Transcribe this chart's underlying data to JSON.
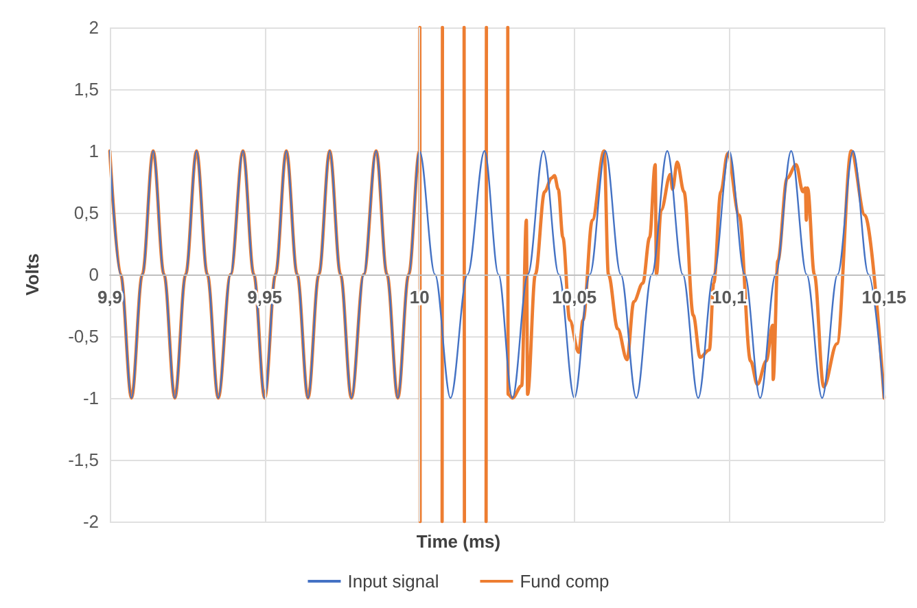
{
  "chart_data": {
    "type": "line",
    "xlabel": "Time (ms)",
    "ylabel": "Volts",
    "xlim": [
      9.9,
      10.15
    ],
    "xticks": [
      {
        "value": 9.9,
        "label": "9,9"
      },
      {
        "value": 9.95,
        "label": "9,95"
      },
      10,
      {
        "value": 10.05,
        "label": "10,05"
      },
      {
        "value": 10.1,
        "label": "10,1"
      },
      {
        "value": 10.15,
        "label": "10,15"
      }
    ],
    "ylim": [
      -2,
      2
    ],
    "yticks": [
      -2,
      {
        "value": -1.5,
        "label": "-1,5"
      },
      -1,
      {
        "value": -0.5,
        "label": "-0,5"
      },
      0,
      {
        "value": 0.5,
        "label": "0,5"
      },
      1,
      {
        "value": 1.5,
        "label": "1,5"
      },
      2
    ],
    "grid": true,
    "legend": "bottom",
    "marker": "none",
    "line_style": "solid",
    "series": [
      {
        "name": "Input signal",
        "color": "#4472c4",
        "x": [
          9.9,
          9.9035,
          9.907,
          9.9105,
          9.914,
          9.9175,
          9.921,
          9.9245,
          9.928,
          9.9315,
          9.935,
          9.939,
          9.943,
          9.9465,
          9.95,
          9.9535,
          9.957,
          9.9605,
          9.964,
          9.9675,
          9.971,
          9.9745,
          9.978,
          9.982,
          9.986,
          9.9895,
          9.993,
          9.9965,
          10.0,
          10.005,
          10.01,
          10.0155,
          10.021,
          10.0255,
          10.03,
          10.035,
          10.04,
          10.045,
          10.05,
          10.055,
          10.06,
          10.065,
          10.07,
          10.075,
          10.08,
          10.085,
          10.09,
          10.095,
          10.1,
          10.105,
          10.11,
          10.115,
          10.12,
          10.125,
          10.13,
          10.135,
          10.14,
          10.145,
          10.15
        ],
        "values": [
          1,
          0,
          -1,
          0,
          1,
          0,
          -1,
          0,
          1,
          0,
          -1,
          0,
          1,
          0,
          -1,
          0,
          1,
          0,
          -1,
          0,
          1,
          0,
          -1,
          0,
          1,
          0,
          -1,
          0,
          1,
          0,
          -1,
          0,
          1,
          0,
          -1,
          0,
          1,
          0,
          -1,
          0,
          1,
          0,
          -1,
          0,
          1,
          0,
          -1,
          0,
          1,
          0,
          -1,
          0,
          1,
          0,
          -1,
          0,
          1,
          0,
          -1
        ]
      },
      {
        "name": "Fund comp",
        "color": "#ed7d31",
        "x": [
          9.9,
          9.9035,
          9.907,
          9.9105,
          9.914,
          9.9175,
          9.921,
          9.9245,
          9.928,
          9.9315,
          9.935,
          9.939,
          9.943,
          9.9465,
          9.95,
          9.9535,
          9.957,
          9.9605,
          9.964,
          9.9675,
          9.971,
          9.9745,
          9.978,
          9.982,
          9.986,
          9.9895,
          9.993,
          9.9965,
          10.0,
          10.0001,
          10.0002,
          10.0035,
          10.0073,
          10.0074,
          10.011,
          10.0144,
          10.0145,
          10.018,
          10.0215,
          10.0216,
          10.025,
          10.0285,
          10.0286,
          10.03,
          10.033,
          10.0345,
          10.0349,
          10.0374,
          10.0404,
          10.0426,
          10.0436,
          10.0448,
          10.0463,
          10.0485,
          10.0514,
          10.0528,
          10.0558,
          10.0596,
          10.061,
          10.064,
          10.067,
          10.0692,
          10.0721,
          10.0743,
          10.0761,
          10.0765,
          10.078,
          10.081,
          10.0817,
          10.0832,
          10.0854,
          10.0884,
          10.0906,
          10.0936,
          10.095,
          10.0973,
          10.0995,
          10.1032,
          10.1069,
          10.1091,
          10.112,
          10.114,
          10.1142,
          10.1157,
          10.1187,
          10.1216,
          10.1238,
          10.1246,
          10.1249,
          10.1253,
          10.1275,
          10.1305,
          10.1348,
          10.1394,
          10.1438,
          10.15
        ],
        "values": [
          1,
          0,
          -1,
          0,
          1,
          0,
          -1,
          0,
          1,
          0,
          -1,
          0,
          1,
          0,
          -1,
          0,
          1,
          0,
          -1,
          0,
          1,
          0,
          -1,
          0,
          1,
          0,
          -1,
          0,
          1,
          2,
          -2,
          null,
          -2,
          2,
          null,
          2,
          -2,
          null,
          -2,
          2,
          null,
          2,
          -0.97,
          -1,
          -0.9,
          0.44,
          -0.97,
          0,
          0.67,
          0.78,
          0.8,
          0.69,
          0.3,
          -0.37,
          -0.63,
          -0.37,
          0.44,
          1.0,
          0,
          -0.44,
          -0.69,
          -0.22,
          -0.07,
          0.3,
          0.89,
          0,
          0.52,
          0.81,
          0.69,
          0.91,
          0.67,
          -0.33,
          -0.67,
          -0.61,
          -0.07,
          0.67,
          0.98,
          0.48,
          -0.7,
          -0.89,
          -0.7,
          -0.41,
          -0.85,
          0.11,
          0.78,
          0.89,
          0.67,
          0.7,
          0.44,
          0.7,
          0,
          -0.91,
          -0.56,
          1.0,
          0.48,
          -1.0
        ]
      }
    ]
  }
}
